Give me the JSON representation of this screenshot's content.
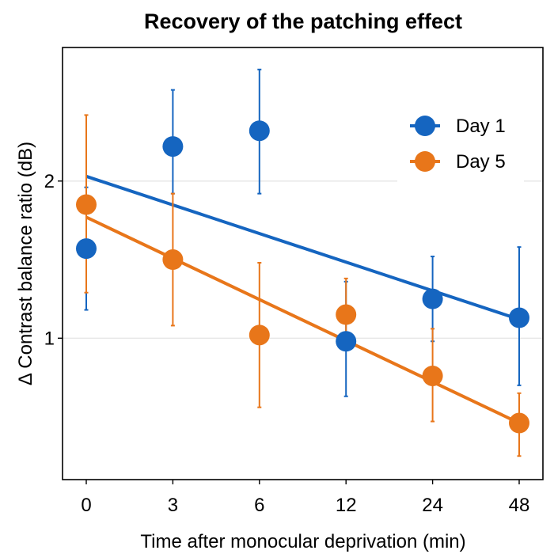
{
  "chart_data": {
    "type": "scatter",
    "title": "Recovery of the patching effect",
    "xlabel": "Time after monocular deprivation (min)",
    "ylabel": "Δ Contrast balance ratio (dB)",
    "categories": [
      "0",
      "3",
      "6",
      "12",
      "24",
      "48"
    ],
    "ylim": [
      0.1,
      2.85
    ],
    "yticks": [
      1,
      2
    ],
    "grid": "horizontal-major",
    "legend_position": "top-right",
    "series": [
      {
        "name": "Day 1",
        "color": "#1565c0",
        "values": [
          1.57,
          2.22,
          2.32,
          0.98,
          1.25,
          1.13
        ],
        "err_low": [
          1.18,
          1.92,
          1.92,
          0.63,
          0.98,
          0.7
        ],
        "err_high": [
          1.96,
          2.58,
          2.71,
          1.36,
          1.52,
          1.58
        ],
        "fit": [
          2.03,
          1.12
        ]
      },
      {
        "name": "Day 5",
        "color": "#e8761a",
        "values": [
          1.85,
          1.5,
          1.02,
          1.15,
          0.76,
          0.46
        ],
        "err_low": [
          1.29,
          1.08,
          0.56,
          0.96,
          0.47,
          0.25
        ],
        "err_high": [
          2.42,
          1.92,
          1.48,
          1.38,
          1.06,
          0.65
        ],
        "fit": [
          1.77,
          0.46
        ]
      }
    ]
  }
}
